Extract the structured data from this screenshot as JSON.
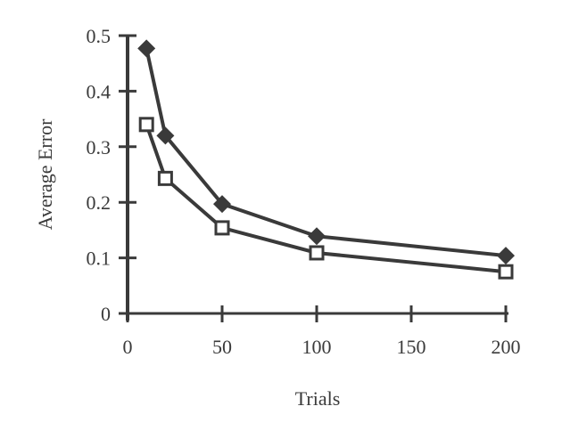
{
  "chart_data": {
    "type": "line",
    "title": "",
    "xlabel": "Trials",
    "ylabel": "Average Error",
    "xlim": [
      0,
      200
    ],
    "ylim": [
      0,
      0.5
    ],
    "x_ticks": [
      "0",
      "50",
      "100",
      "150",
      "200"
    ],
    "y_ticks": [
      "0",
      "0.1",
      "0.2",
      "0.3",
      "0.4",
      "0.5"
    ],
    "grid": false,
    "legend": null,
    "x": [
      10,
      20,
      50,
      100,
      200
    ],
    "series": [
      {
        "name": "Series 1 (filled diamond)",
        "marker": "diamond-filled",
        "values": [
          0.477,
          0.32,
          0.197,
          0.139,
          0.104
        ]
      },
      {
        "name": "Series 2 (open square)",
        "marker": "square-open",
        "values": [
          0.34,
          0.243,
          0.154,
          0.109,
          0.075
        ]
      }
    ]
  },
  "colors": {
    "ink": "#3a3a3a",
    "background": "#ffffff"
  }
}
